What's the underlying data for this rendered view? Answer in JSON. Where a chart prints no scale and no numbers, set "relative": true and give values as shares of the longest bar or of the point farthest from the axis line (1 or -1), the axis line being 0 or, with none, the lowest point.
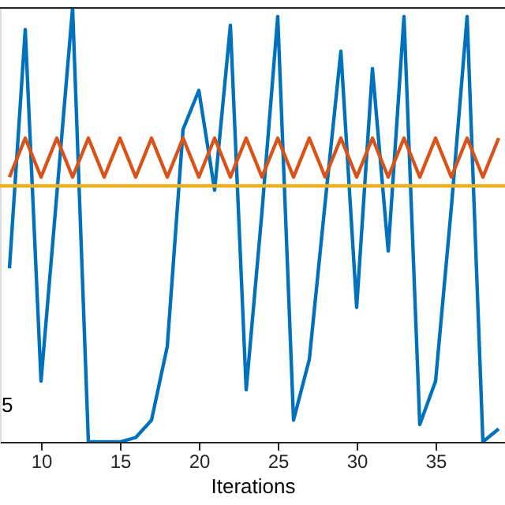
{
  "chart_data": {
    "type": "line",
    "relative": true,
    "xlabel": "Iterations",
    "xlim": [
      7.4,
      39.4
    ],
    "xticks": [
      10,
      15,
      20,
      25,
      30,
      35
    ],
    "grid": false,
    "annotations": [
      "5"
    ],
    "series": [
      {
        "color": "#0072bd",
        "x": [
          8,
          9,
          10,
          11,
          12,
          13,
          14,
          15,
          16,
          17,
          18,
          19,
          20,
          21,
          22,
          23,
          24,
          25,
          26,
          27,
          28,
          29,
          30,
          31,
          32,
          33,
          34,
          35,
          36,
          37,
          38,
          39
        ],
        "values": [
          0.4,
          0.95,
          0.14,
          0.57,
          1.0,
          0,
          0,
          0,
          0.01,
          0.05,
          0.22,
          0.72,
          0.81,
          0.58,
          0.96,
          0.12,
          0.53,
          0.98,
          0.05,
          0.19,
          0.55,
          0.9,
          0.31,
          0.86,
          0.44,
          0.98,
          0.04,
          0.14,
          0.54,
          0.98,
          0,
          0.03
        ]
      },
      {
        "color": "#d95319",
        "x": [
          8,
          9,
          10,
          11,
          12,
          13,
          14,
          15,
          16,
          17,
          18,
          19,
          20,
          21,
          22,
          23,
          24,
          25,
          26,
          27,
          28,
          29,
          30,
          31,
          32,
          33,
          34,
          35,
          36,
          37,
          38,
          39
        ],
        "values": [
          0.61,
          0.7,
          0.61,
          0.7,
          0.61,
          0.7,
          0.61,
          0.7,
          0.61,
          0.7,
          0.61,
          0.7,
          0.61,
          0.7,
          0.61,
          0.7,
          0.61,
          0.7,
          0.61,
          0.7,
          0.61,
          0.7,
          0.61,
          0.7,
          0.61,
          0.7,
          0.61,
          0.7,
          0.61,
          0.7,
          0.61,
          0.7
        ]
      },
      {
        "color": "#edb120",
        "x": [
          7.4,
          39.4
        ],
        "values": [
          0.59,
          0.59
        ]
      }
    ]
  }
}
